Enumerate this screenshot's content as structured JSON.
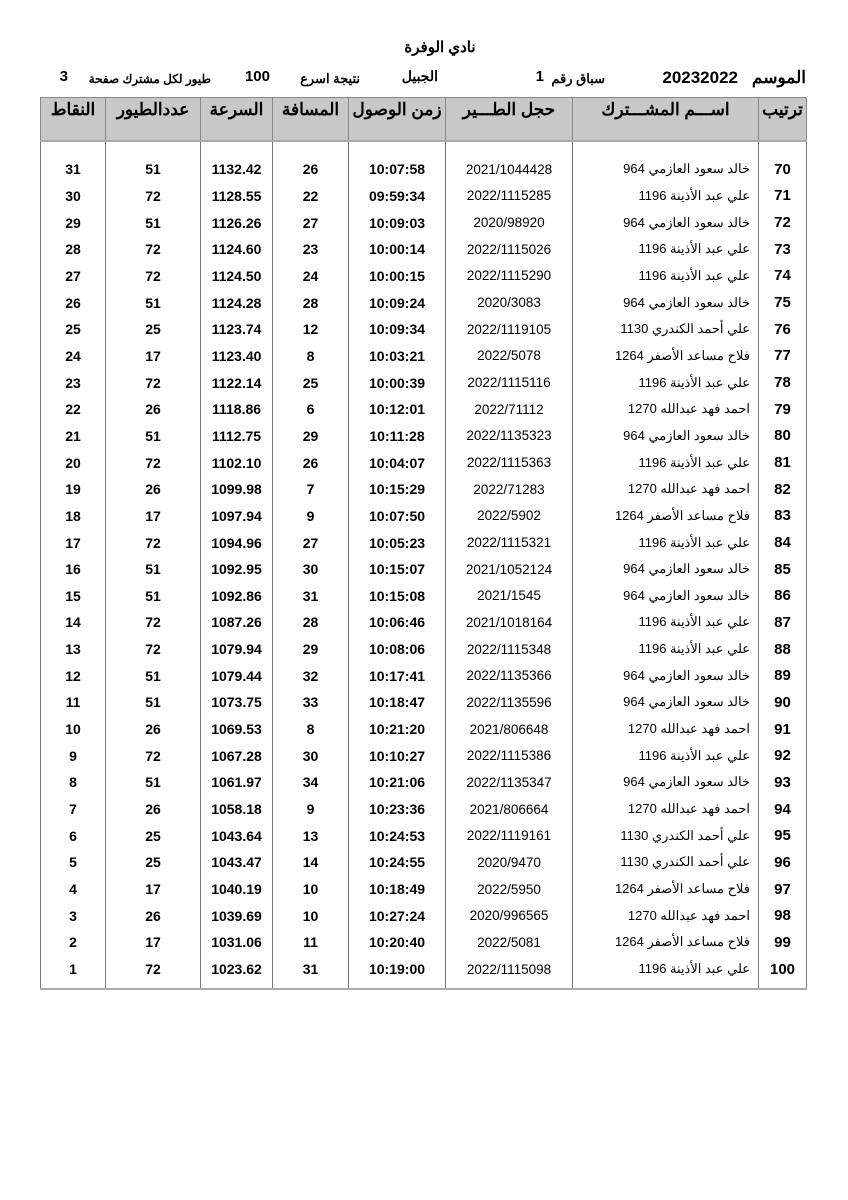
{
  "title": "نادي الوفرة",
  "info": {
    "season_label": "الموسم",
    "season": "20232022",
    "race_label": "سباق رقم",
    "race_no": "1",
    "location": "الجبيل",
    "result_label": "نتيجة اسرع",
    "result_count": "100",
    "birds_label": "طيور لكل مشترك صفحة",
    "page": "3"
  },
  "columns": [
    "ترتيب",
    "اســـم المشـــترك",
    "حجل الطـــير",
    "زمن الوصول",
    "المسافة",
    "السرعة",
    "عددالطيور",
    "النقاط"
  ],
  "rows": [
    [
      "70",
      "خالد سعود العازمي 964",
      "2021/1044428",
      "10:07:58",
      "26",
      "1132.42",
      "51",
      "31"
    ],
    [
      "71",
      "علي عبد الأذينة 1196",
      "2022/1115285",
      "09:59:34",
      "22",
      "1128.55",
      "72",
      "30"
    ],
    [
      "72",
      "خالد سعود العازمي 964",
      "2020/98920",
      "10:09:03",
      "27",
      "1126.26",
      "51",
      "29"
    ],
    [
      "73",
      "علي عبد الأذينة 1196",
      "2022/1115026",
      "10:00:14",
      "23",
      "1124.60",
      "72",
      "28"
    ],
    [
      "74",
      "علي عبد الأذينة 1196",
      "2022/1115290",
      "10:00:15",
      "24",
      "1124.50",
      "72",
      "27"
    ],
    [
      "75",
      "خالد سعود العازمي 964",
      "2020/3083",
      "10:09:24",
      "28",
      "1124.28",
      "51",
      "26"
    ],
    [
      "76",
      "علي أحمد الكندري 1130",
      "2022/1119105",
      "10:09:34",
      "12",
      "1123.74",
      "25",
      "25"
    ],
    [
      "77",
      "فلاح مساعد الأصفر 1264",
      "2022/5078",
      "10:03:21",
      "8",
      "1123.40",
      "17",
      "24"
    ],
    [
      "78",
      "علي عبد الأذينة 1196",
      "2022/1115116",
      "10:00:39",
      "25",
      "1122.14",
      "72",
      "23"
    ],
    [
      "79",
      "احمد فهد عبدالله 1270",
      "2022/71112",
      "10:12:01",
      "6",
      "1118.86",
      "26",
      "22"
    ],
    [
      "80",
      "خالد سعود العازمي 964",
      "2022/1135323",
      "10:11:28",
      "29",
      "1112.75",
      "51",
      "21"
    ],
    [
      "81",
      "علي عبد الأذينة 1196",
      "2022/1115363",
      "10:04:07",
      "26",
      "1102.10",
      "72",
      "20"
    ],
    [
      "82",
      "احمد فهد عبدالله 1270",
      "2022/71283",
      "10:15:29",
      "7",
      "1099.98",
      "26",
      "19"
    ],
    [
      "83",
      "فلاح مساعد الأصفر 1264",
      "2022/5902",
      "10:07:50",
      "9",
      "1097.94",
      "17",
      "18"
    ],
    [
      "84",
      "علي عبد الأذينة 1196",
      "2022/1115321",
      "10:05:23",
      "27",
      "1094.96",
      "72",
      "17"
    ],
    [
      "85",
      "خالد سعود العازمي 964",
      "2021/1052124",
      "10:15:07",
      "30",
      "1092.95",
      "51",
      "16"
    ],
    [
      "86",
      "خالد سعود العازمي 964",
      "2021/1545",
      "10:15:08",
      "31",
      "1092.86",
      "51",
      "15"
    ],
    [
      "87",
      "علي عبد الأذينة 1196",
      "2021/1018164",
      "10:06:46",
      "28",
      "1087.26",
      "72",
      "14"
    ],
    [
      "88",
      "علي عبد الأذينة 1196",
      "2022/1115348",
      "10:08:06",
      "29",
      "1079.94",
      "72",
      "13"
    ],
    [
      "89",
      "خالد سعود العازمي 964",
      "2022/1135366",
      "10:17:41",
      "32",
      "1079.44",
      "51",
      "12"
    ],
    [
      "90",
      "خالد سعود العازمي 964",
      "2022/1135596",
      "10:18:47",
      "33",
      "1073.75",
      "51",
      "11"
    ],
    [
      "91",
      "احمد فهد عبدالله 1270",
      "2021/806648",
      "10:21:20",
      "8",
      "1069.53",
      "26",
      "10"
    ],
    [
      "92",
      "علي عبد الأذينة 1196",
      "2022/1115386",
      "10:10:27",
      "30",
      "1067.28",
      "72",
      "9"
    ],
    [
      "93",
      "خالد سعود العازمي 964",
      "2022/1135347",
      "10:21:06",
      "34",
      "1061.97",
      "51",
      "8"
    ],
    [
      "94",
      "احمد فهد عبدالله 1270",
      "2021/806664",
      "10:23:36",
      "9",
      "1058.18",
      "26",
      "7"
    ],
    [
      "95",
      "علي أحمد الكندري 1130",
      "2022/1119161",
      "10:24:53",
      "13",
      "1043.64",
      "25",
      "6"
    ],
    [
      "96",
      "علي أحمد الكندري 1130",
      "2020/9470",
      "10:24:55",
      "14",
      "1043.47",
      "25",
      "5"
    ],
    [
      "97",
      "فلاح مساعد الأصفر 1264",
      "2022/5950",
      "10:18:49",
      "10",
      "1040.19",
      "17",
      "4"
    ],
    [
      "98",
      "احمد فهد عبدالله 1270",
      "2020/996565",
      "10:27:24",
      "10",
      "1039.69",
      "26",
      "3"
    ],
    [
      "99",
      "فلاح مساعد الأصفر 1264",
      "2022/5081",
      "10:20:40",
      "11",
      "1031.06",
      "17",
      "2"
    ],
    [
      "100",
      "علي عبد الأذينة 1196",
      "2022/1115098",
      "10:19:00",
      "31",
      "1023.62",
      "72",
      "1"
    ]
  ]
}
